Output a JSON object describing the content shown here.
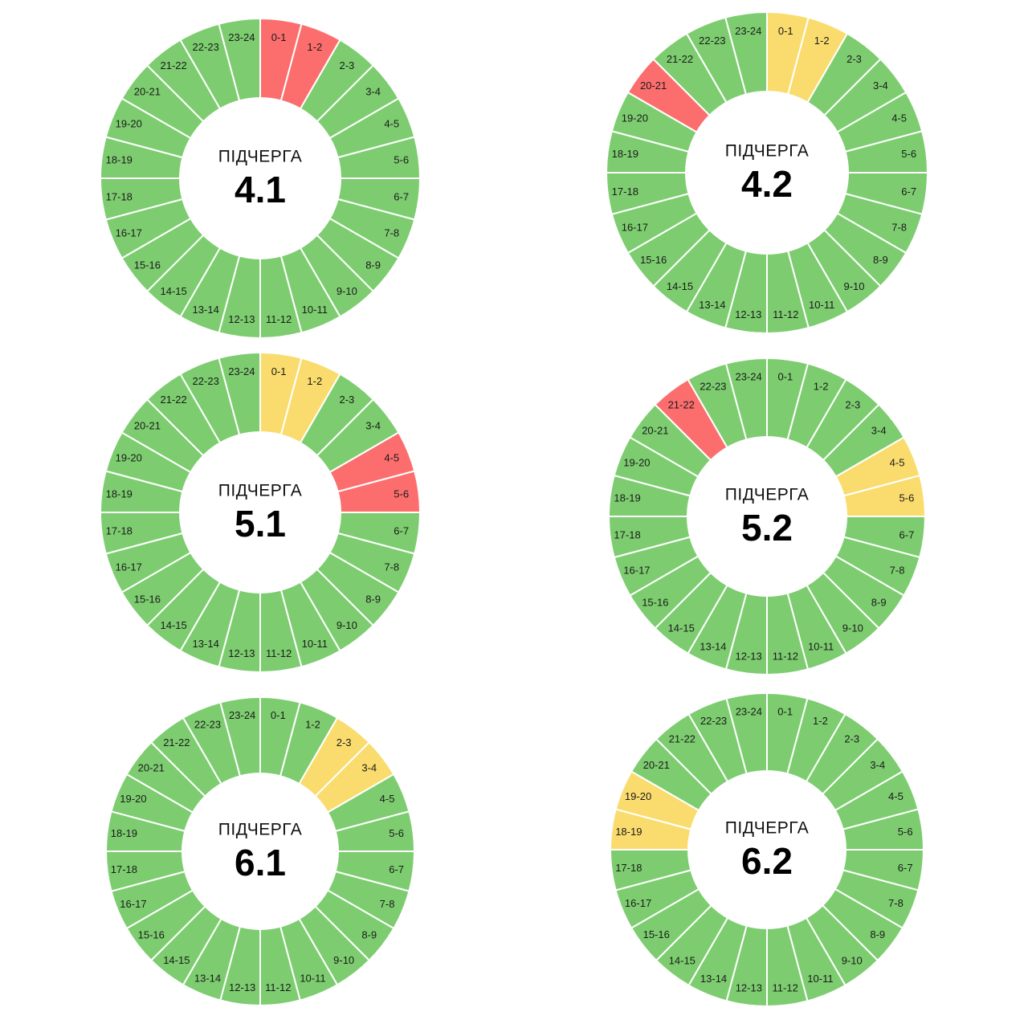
{
  "colors": {
    "green": "#7dcd70",
    "yellow": "#fadc6e",
    "red": "#fc6e6e",
    "separator": "#ffffff",
    "background": "#ffffff"
  },
  "chart_data": [
    {
      "type": "pie",
      "caption": "ПІДЧЕРГА",
      "number": "4.1",
      "categories": [
        "0-1",
        "1-2",
        "2-3",
        "3-4",
        "4-5",
        "5-6",
        "6-7",
        "7-8",
        "8-9",
        "9-10",
        "10-11",
        "11-12",
        "12-13",
        "13-14",
        "14-15",
        "15-16",
        "16-17",
        "17-18",
        "18-19",
        "19-20",
        "20-21",
        "21-22",
        "22-23",
        "23-24"
      ],
      "values": [
        "red",
        "red",
        "green",
        "green",
        "green",
        "green",
        "green",
        "green",
        "green",
        "green",
        "green",
        "green",
        "green",
        "green",
        "green",
        "green",
        "green",
        "green",
        "green",
        "green",
        "green",
        "green",
        "green",
        "green"
      ]
    },
    {
      "type": "pie",
      "caption": "ПІДЧЕРГА",
      "number": "4.2",
      "categories": [
        "0-1",
        "1-2",
        "2-3",
        "3-4",
        "4-5",
        "5-6",
        "6-7",
        "7-8",
        "8-9",
        "9-10",
        "10-11",
        "11-12",
        "12-13",
        "13-14",
        "14-15",
        "15-16",
        "16-17",
        "17-18",
        "18-19",
        "19-20",
        "20-21",
        "21-22",
        "22-23",
        "23-24"
      ],
      "values": [
        "yellow",
        "yellow",
        "green",
        "green",
        "green",
        "green",
        "green",
        "green",
        "green",
        "green",
        "green",
        "green",
        "green",
        "green",
        "green",
        "green",
        "green",
        "green",
        "green",
        "green",
        "red",
        "green",
        "green",
        "green"
      ]
    },
    {
      "type": "pie",
      "caption": "ПІДЧЕРГА",
      "number": "5.1",
      "categories": [
        "0-1",
        "1-2",
        "2-3",
        "3-4",
        "4-5",
        "5-6",
        "6-7",
        "7-8",
        "8-9",
        "9-10",
        "10-11",
        "11-12",
        "12-13",
        "13-14",
        "14-15",
        "15-16",
        "16-17",
        "17-18",
        "18-19",
        "19-20",
        "20-21",
        "21-22",
        "22-23",
        "23-24"
      ],
      "values": [
        "yellow",
        "yellow",
        "green",
        "green",
        "red",
        "red",
        "green",
        "green",
        "green",
        "green",
        "green",
        "green",
        "green",
        "green",
        "green",
        "green",
        "green",
        "green",
        "green",
        "green",
        "green",
        "green",
        "green",
        "green"
      ]
    },
    {
      "type": "pie",
      "caption": "ПІДЧЕРГА",
      "number": "5.2",
      "categories": [
        "0-1",
        "1-2",
        "2-3",
        "3-4",
        "4-5",
        "5-6",
        "6-7",
        "7-8",
        "8-9",
        "9-10",
        "10-11",
        "11-12",
        "12-13",
        "13-14",
        "14-15",
        "15-16",
        "16-17",
        "17-18",
        "18-19",
        "19-20",
        "20-21",
        "21-22",
        "22-23",
        "23-24"
      ],
      "values": [
        "green",
        "green",
        "green",
        "green",
        "yellow",
        "yellow",
        "green",
        "green",
        "green",
        "green",
        "green",
        "green",
        "green",
        "green",
        "green",
        "green",
        "green",
        "green",
        "green",
        "green",
        "green",
        "red",
        "green",
        "green"
      ]
    },
    {
      "type": "pie",
      "caption": "ПІДЧЕРГА",
      "number": "6.1",
      "categories": [
        "0-1",
        "1-2",
        "2-3",
        "3-4",
        "4-5",
        "5-6",
        "6-7",
        "7-8",
        "8-9",
        "9-10",
        "10-11",
        "11-12",
        "12-13",
        "13-14",
        "14-15",
        "15-16",
        "16-17",
        "17-18",
        "18-19",
        "19-20",
        "20-21",
        "21-22",
        "22-23",
        "23-24"
      ],
      "values": [
        "green",
        "green",
        "yellow",
        "yellow",
        "green",
        "green",
        "green",
        "green",
        "green",
        "green",
        "green",
        "green",
        "green",
        "green",
        "green",
        "green",
        "green",
        "green",
        "green",
        "green",
        "green",
        "green",
        "green",
        "green"
      ]
    },
    {
      "type": "pie",
      "caption": "ПІДЧЕРГА",
      "number": "6.2",
      "categories": [
        "0-1",
        "1-2",
        "2-3",
        "3-4",
        "4-5",
        "5-6",
        "6-7",
        "7-8",
        "8-9",
        "9-10",
        "10-11",
        "11-12",
        "12-13",
        "13-14",
        "14-15",
        "15-16",
        "16-17",
        "17-18",
        "18-19",
        "19-20",
        "20-21",
        "21-22",
        "22-23",
        "23-24"
      ],
      "values": [
        "green",
        "green",
        "green",
        "green",
        "green",
        "green",
        "green",
        "green",
        "green",
        "green",
        "green",
        "green",
        "green",
        "green",
        "green",
        "green",
        "green",
        "green",
        "yellow",
        "yellow",
        "green",
        "green",
        "green",
        "green"
      ]
    }
  ]
}
